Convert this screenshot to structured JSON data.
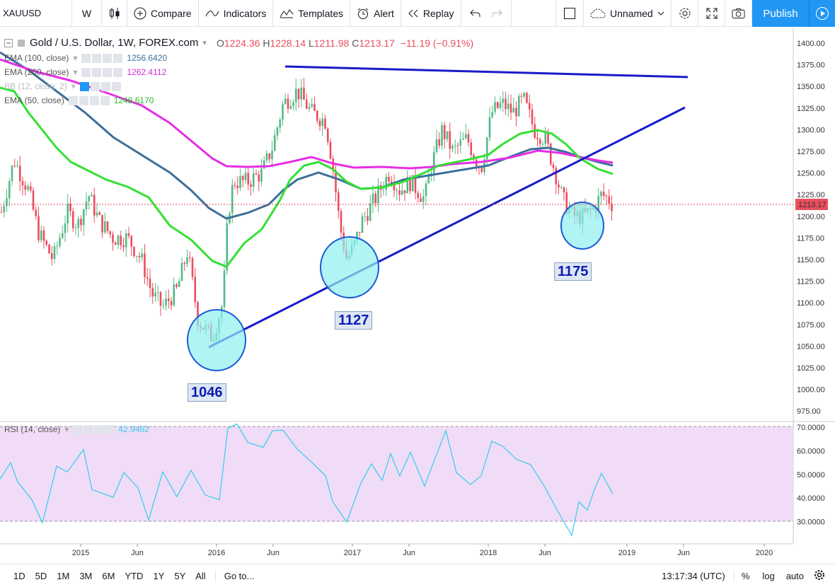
{
  "toolbar": {
    "symbol": "XAUUSD",
    "interval": "W",
    "compare": "Compare",
    "indicators": "Indicators",
    "templates": "Templates",
    "alert": "Alert",
    "replay": "Replay",
    "layout_name": "Unnamed",
    "publish": "Publish"
  },
  "legend": {
    "title": "Gold / U.S. Dollar, 1W, FOREX.com",
    "o_label": "O",
    "o": "1224.36",
    "h_label": "H",
    "h": "1228.14",
    "l_label": "L",
    "l": "1211.98",
    "c_label": "C",
    "c": "1213.17",
    "change": "−11.19 (−0.91%)",
    "ema100": "EMA (100, close)",
    "ema100_val": "1256.6420",
    "ema200": "EMA (200, close)",
    "ema200_val": "1262.4112",
    "bb": "BB (12, close, 2)",
    "ema50": "EMA (50, close)",
    "ema50_val": "1248.6170",
    "rsi": "RSI (14, close)",
    "rsi_val": "42.9462"
  },
  "annotations": {
    "low1": "1046",
    "low2": "1127",
    "low3": "1175"
  },
  "last_price": "1213.17",
  "price_axis": [
    "1400.00",
    "1375.00",
    "1350.00",
    "1325.00",
    "1300.00",
    "1275.00",
    "1250.00",
    "1225.00",
    "1200.00",
    "1175.00",
    "1150.00",
    "1125.00",
    "1100.00",
    "1075.00",
    "1050.00",
    "1025.00",
    "1000.00",
    "975.00"
  ],
  "rsi_axis": [
    "70.0000",
    "60.0000",
    "50.0000",
    "40.0000",
    "30.0000"
  ],
  "time_axis": [
    "2015",
    "Jun",
    "2016",
    "Jun",
    "2017",
    "Jun",
    "2018",
    "Jun",
    "2019",
    "Jun",
    "2020"
  ],
  "bottom": {
    "ranges": [
      "1D",
      "5D",
      "1M",
      "3M",
      "6M",
      "YTD",
      "1Y",
      "5Y",
      "All"
    ],
    "goto": "Go to...",
    "time": "13:17:34 (UTC)",
    "percent": "%",
    "log": "log",
    "auto": "auto"
  },
  "colors": {
    "up": "#53b987",
    "down": "#eb4d5c",
    "ema50": "#00e600",
    "ema100": "#3d6f9a",
    "ema200": "#e62ee6",
    "trend": "#1a1ac8",
    "rsi": "#33ccee",
    "rsi_band": "#f0dcf7",
    "publish": "#2196f3"
  }
}
